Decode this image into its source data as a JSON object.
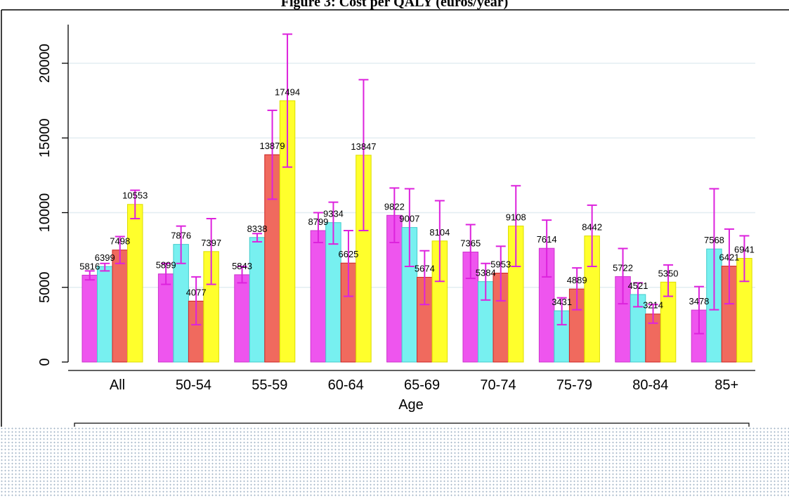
{
  "title": "Figure 3: Cost per QALY (euros/year)",
  "colors": {
    "series": [
      "#ee55ee",
      "#77f0f0",
      "#f06a5e",
      "#ffff2c"
    ],
    "series_edge": [
      "#cc33cc",
      "#44cccc",
      "#cc2222",
      "#dddd00"
    ],
    "error_bar": "#dd22dd",
    "grid": "#e3edf2",
    "axis": "#000000"
  },
  "chart_data": {
    "type": "bar",
    "title": "Figure 3: Cost per QALY (euros/year)",
    "xlabel": "Age",
    "ylabel": "",
    "categories": [
      "All",
      "50-54",
      "55-59",
      "60-64",
      "65-69",
      "70-74",
      "75-79",
      "80-84",
      "85+"
    ],
    "yticks": [
      "0",
      "5000",
      "10000",
      "15000",
      "20000"
    ],
    "ylim": [
      0,
      22500
    ],
    "grid": true,
    "series": [
      {
        "values": [
          5816,
          5899,
          5843,
          8799,
          9822,
          7365,
          7614,
          5722,
          3478
        ],
        "err_low": [
          5500,
          5200,
          5300,
          8000,
          8000,
          5600,
          5700,
          3900,
          1900
        ],
        "err_high": [
          6100,
          6600,
          6400,
          10000,
          11650,
          9200,
          9500,
          7600,
          5050
        ]
      },
      {
        "values": [
          6399,
          7876,
          8338,
          9334,
          9007,
          5384,
          3431,
          4521,
          7568
        ],
        "err_low": [
          6100,
          6600,
          8050,
          7900,
          6400,
          4150,
          2500,
          3700,
          3500
        ],
        "err_high": [
          6600,
          9100,
          8600,
          10700,
          11600,
          6600,
          4300,
          5300,
          11600
        ]
      },
      {
        "values": [
          7498,
          4077,
          13879,
          6625,
          5674,
          5953,
          4889,
          3214,
          6421
        ],
        "err_low": [
          6600,
          2500,
          10900,
          4400,
          3850,
          4100,
          3500,
          2600,
          3900
        ],
        "err_high": [
          8400,
          5700,
          16850,
          8800,
          7450,
          7750,
          6300,
          3850,
          8900
        ]
      },
      {
        "values": [
          10553,
          7397,
          17494,
          13847,
          8104,
          9108,
          8442,
          5350,
          6941
        ],
        "err_low": [
          9600,
          5200,
          13050,
          8800,
          5400,
          6400,
          6400,
          4400,
          5400
        ],
        "err_high": [
          11500,
          9600,
          21950,
          18900,
          10800,
          11800,
          10500,
          6500,
          8450
        ]
      }
    ],
    "legend_position": "bottom"
  }
}
